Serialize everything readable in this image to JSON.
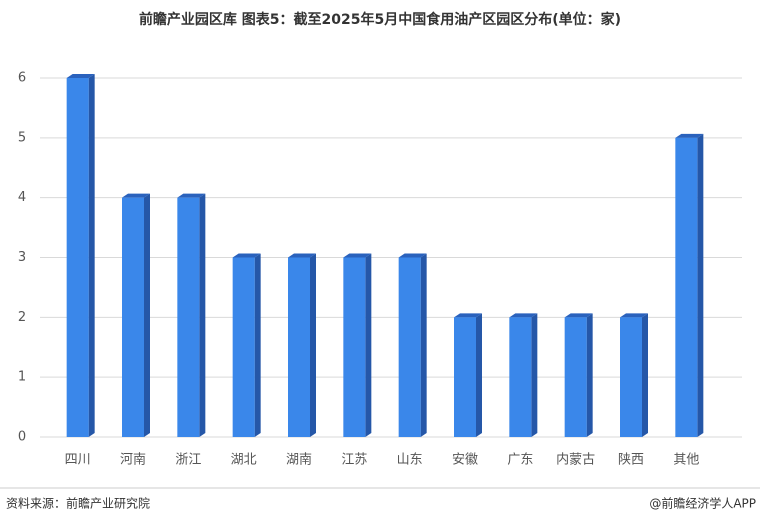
{
  "chart_data": {
    "type": "bar3d",
    "title": "前瞻产业园区库 图表5：截至2025年5月中国食用油产区园区分布(单位：家)",
    "categories": [
      "四川",
      "河南",
      "浙江",
      "湖北",
      "湖南",
      "江苏",
      "山东",
      "安徽",
      "广东",
      "内蒙古",
      "陕西",
      "其他"
    ],
    "values": [
      6,
      4,
      4,
      3,
      3,
      3,
      3,
      2,
      2,
      2,
      2,
      5
    ],
    "color": "#3a87ea",
    "ylim": [
      0,
      6
    ],
    "yticks": [
      0,
      1,
      2,
      3,
      4,
      5,
      6
    ],
    "grid": true
  },
  "footer": {
    "source": "资料来源：前瞻产业研究院",
    "brand": "@前瞻经济学人APP"
  }
}
